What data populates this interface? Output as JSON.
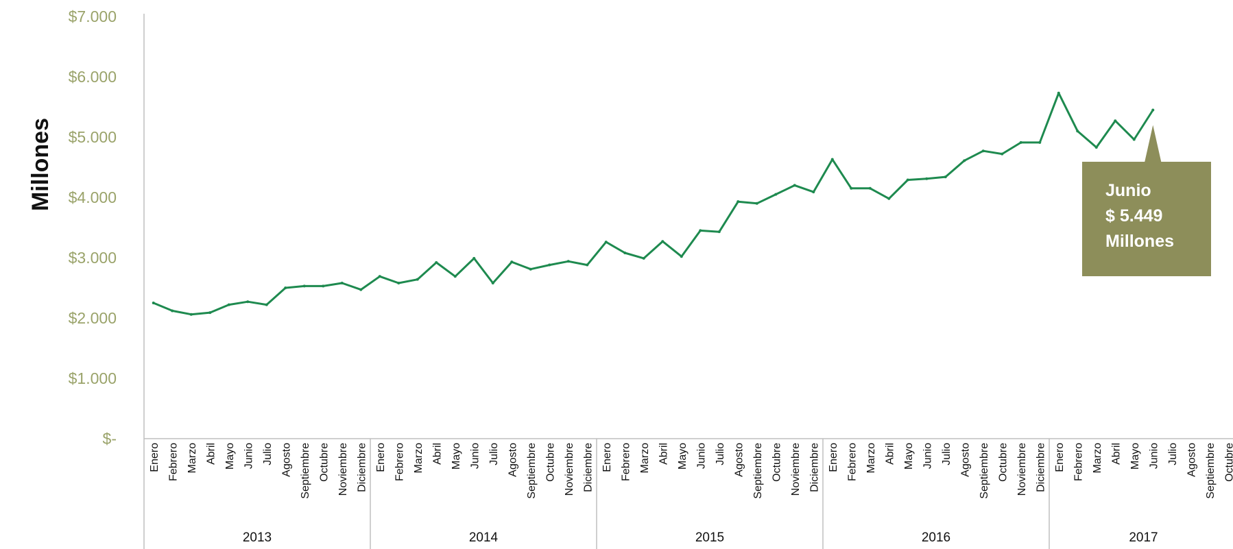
{
  "chart_data": {
    "type": "line",
    "ylabel": "Millones",
    "ylim": [
      0,
      7000
    ],
    "y_ticks": [
      {
        "value": 7000,
        "label": "$7.000"
      },
      {
        "value": 6000,
        "label": "$6.000"
      },
      {
        "value": 5000,
        "label": "$5.000"
      },
      {
        "value": 4000,
        "label": "$4.000"
      },
      {
        "value": 3000,
        "label": "$3.000"
      },
      {
        "value": 2000,
        "label": "$2.000"
      },
      {
        "value": 1000,
        "label": "$1.000"
      },
      {
        "value": 0,
        "label": "$-"
      }
    ],
    "grid": false,
    "line_color": "#1e8a4f",
    "axis_text_color": "#9aa36a",
    "years": [
      {
        "year": "2013",
        "months": [
          "Enero",
          "Febrero",
          "Marzo",
          "Abril",
          "Mayo",
          "Junio",
          "Julio",
          "Agosto",
          "Septiembre",
          "Octubre",
          "Noviembre",
          "Diciembre"
        ],
        "values": [
          2250,
          2120,
          2060,
          2090,
          2220,
          2270,
          2220,
          2500,
          2530,
          2530,
          2580,
          2470
        ]
      },
      {
        "year": "2014",
        "months": [
          "Enero",
          "Febrero",
          "Marzo",
          "Abril",
          "Mayo",
          "Junio",
          "Julio",
          "Agosto",
          "Septiembre",
          "Octubre",
          "Noviembre",
          "Diciembre"
        ],
        "values": [
          2690,
          2580,
          2640,
          2920,
          2690,
          2990,
          2580,
          2930,
          2810,
          2880,
          2940,
          2880
        ]
      },
      {
        "year": "2015",
        "months": [
          "Enero",
          "Febrero",
          "Marzo",
          "Abril",
          "Mayo",
          "Junio",
          "Julio",
          "Agosto",
          "Septiembre",
          "Octubre",
          "Noviembre",
          "Diciembre"
        ],
        "values": [
          3260,
          3080,
          2990,
          3270,
          3020,
          3450,
          3430,
          3930,
          3900,
          4050,
          4200,
          4090
        ]
      },
      {
        "year": "2016",
        "months": [
          "Enero",
          "Febrero",
          "Marzo",
          "Abril",
          "Mayo",
          "Junio",
          "Julio",
          "Agosto",
          "Septiembre",
          "Octubre",
          "Noviembre",
          "Diciembre"
        ],
        "values": [
          4630,
          4150,
          4150,
          3980,
          4290,
          4310,
          4340,
          4610,
          4770,
          4720,
          4910,
          4910
        ]
      },
      {
        "year": "2017",
        "months": [
          "Enero",
          "Febrero",
          "Marzo",
          "Abril",
          "Mayo",
          "Junio",
          "Julio",
          "Agosto",
          "Septiembre",
          "Octubre"
        ],
        "values": [
          5730,
          5100,
          4830,
          5270,
          4960,
          5449,
          null,
          null,
          null,
          null
        ]
      }
    ],
    "annotation": {
      "lines": [
        "Junio",
        "$ 5.449",
        "Millones"
      ],
      "target_year": "2017",
      "target_month": "Junio",
      "color": "#8d8e5a"
    }
  }
}
